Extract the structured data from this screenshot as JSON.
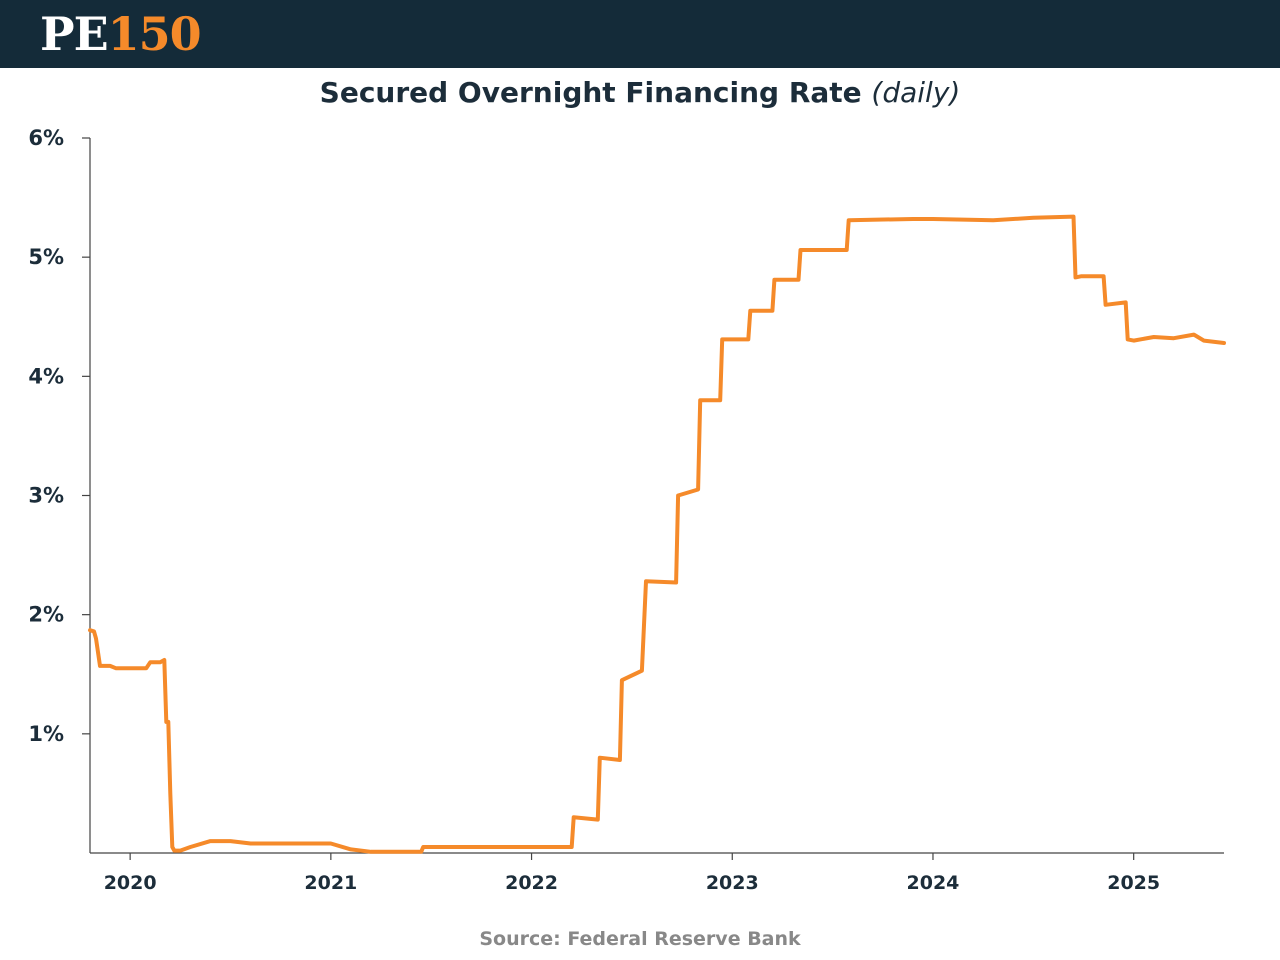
{
  "header": {
    "logo_pe": "PE",
    "logo_num": "150",
    "logo_colors": {
      "pe": "#ffffff",
      "num": "#f58a2a",
      "bar": "#142b39"
    }
  },
  "title": {
    "main": "Secured Overnight Financing Rate",
    "qualifier": "(daily)"
  },
  "source": "Source: Federal Reserve Bank",
  "chart_data": {
    "type": "line",
    "title": "Secured Overnight Financing Rate (daily)",
    "xlabel": "",
    "ylabel": "",
    "xlim": [
      2019.8,
      2025.45
    ],
    "ylim": [
      0,
      6
    ],
    "y_ticks": [
      1,
      2,
      3,
      4,
      5,
      6
    ],
    "y_tick_labels": [
      "1%",
      "2%",
      "3%",
      "4%",
      "5%",
      "6%"
    ],
    "x_ticks": [
      2020,
      2021,
      2022,
      2023,
      2024,
      2025
    ],
    "x_tick_labels": [
      "2020",
      "2021",
      "2022",
      "2023",
      "2024",
      "2025"
    ],
    "grid": false,
    "legend": "none",
    "series": [
      {
        "color": "#f58a2a",
        "x": [
          2019.8,
          2019.82,
          2019.83,
          2019.85,
          2019.9,
          2019.93,
          2019.95,
          2020.0,
          2020.08,
          2020.1,
          2020.15,
          2020.17,
          2020.18,
          2020.19,
          2020.2,
          2020.21,
          2020.22,
          2020.23,
          2020.25,
          2020.3,
          2020.4,
          2020.5,
          2020.6,
          2020.8,
          2021.0,
          2021.1,
          2021.2,
          2021.45,
          2021.46,
          2021.8,
          2022.2,
          2022.21,
          2022.33,
          2022.34,
          2022.44,
          2022.45,
          2022.55,
          2022.57,
          2022.72,
          2022.73,
          2022.83,
          2022.84,
          2022.94,
          2022.95,
          2023.08,
          2023.09,
          2023.2,
          2023.21,
          2023.33,
          2023.34,
          2023.57,
          2023.58,
          2023.9,
          2024.0,
          2024.3,
          2024.5,
          2024.7,
          2024.71,
          2024.74,
          2024.75,
          2024.85,
          2024.86,
          2024.96,
          2024.97,
          2025.0,
          2025.1,
          2025.2,
          2025.3,
          2025.35,
          2025.45
        ],
        "y": [
          1.87,
          1.86,
          1.8,
          1.57,
          1.57,
          1.55,
          1.55,
          1.55,
          1.55,
          1.6,
          1.6,
          1.62,
          1.1,
          1.1,
          0.5,
          0.05,
          0.02,
          0.02,
          0.02,
          0.05,
          0.1,
          0.1,
          0.08,
          0.08,
          0.08,
          0.03,
          0.01,
          0.01,
          0.05,
          0.05,
          0.05,
          0.3,
          0.28,
          0.8,
          0.78,
          1.45,
          1.53,
          2.28,
          2.27,
          3.0,
          3.05,
          3.8,
          3.8,
          4.31,
          4.31,
          4.55,
          4.55,
          4.81,
          4.81,
          5.06,
          5.06,
          5.31,
          5.32,
          5.32,
          5.31,
          5.33,
          5.34,
          4.83,
          4.84,
          4.84,
          4.84,
          4.6,
          4.62,
          4.31,
          4.3,
          4.33,
          4.32,
          4.35,
          4.3,
          4.28
        ]
      }
    ]
  }
}
